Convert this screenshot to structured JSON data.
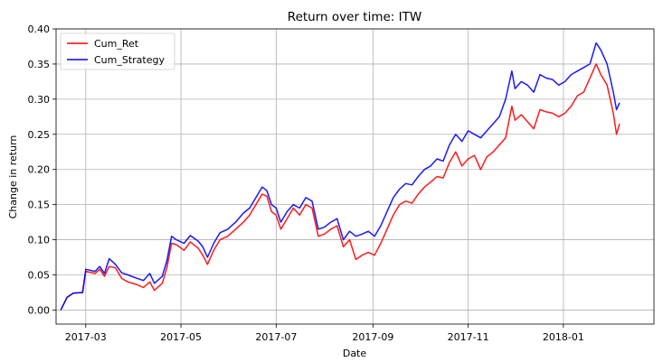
{
  "chart_data": {
    "type": "line",
    "title": "Return over time: ITW",
    "xlabel": "Date",
    "ylabel": "Change in return",
    "grid": true,
    "legend_position": "upper-left",
    "x_range": [
      "2017-02-10",
      "2018-02-28"
    ],
    "ylim": [
      -0.02,
      0.4
    ],
    "y_ticks": [
      0.0,
      0.05,
      0.1,
      0.15,
      0.2,
      0.25,
      0.3,
      0.35,
      0.4
    ],
    "y_tick_labels": [
      "0.00",
      "0.05",
      "0.10",
      "0.15",
      "0.20",
      "0.25",
      "0.30",
      "0.35",
      "0.40"
    ],
    "x_ticks": [
      "2017-03-01",
      "2017-05-01",
      "2017-07-01",
      "2017-09-01",
      "2017-11-01",
      "2018-01-01"
    ],
    "x_tick_labels": [
      "2017-03",
      "2017-05",
      "2017-07",
      "2017-09",
      "2017-11",
      "2018-01"
    ],
    "series": [
      {
        "name": "Cum_Ret",
        "color": "#ff0000",
        "points": [
          [
            "2017-02-13",
            0.0
          ],
          [
            "2017-02-17",
            0.018
          ],
          [
            "2017-02-21",
            0.024
          ],
          [
            "2017-02-27",
            0.025
          ],
          [
            "2017-03-01",
            0.055
          ],
          [
            "2017-03-07",
            0.052
          ],
          [
            "2017-03-10",
            0.058
          ],
          [
            "2017-03-13",
            0.048
          ],
          [
            "2017-03-16",
            0.062
          ],
          [
            "2017-03-20",
            0.06
          ],
          [
            "2017-03-24",
            0.045
          ],
          [
            "2017-03-28",
            0.04
          ],
          [
            "2017-04-03",
            0.036
          ],
          [
            "2017-04-07",
            0.032
          ],
          [
            "2017-04-11",
            0.04
          ],
          [
            "2017-04-14",
            0.028
          ],
          [
            "2017-04-19",
            0.038
          ],
          [
            "2017-04-22",
            0.06
          ],
          [
            "2017-04-25",
            0.095
          ],
          [
            "2017-04-28",
            0.093
          ],
          [
            "2017-05-03",
            0.085
          ],
          [
            "2017-05-07",
            0.097
          ],
          [
            "2017-05-12",
            0.088
          ],
          [
            "2017-05-15",
            0.078
          ],
          [
            "2017-05-18",
            0.065
          ],
          [
            "2017-05-22",
            0.085
          ],
          [
            "2017-05-26",
            0.1
          ],
          [
            "2017-05-31",
            0.105
          ],
          [
            "2017-06-05",
            0.115
          ],
          [
            "2017-06-10",
            0.125
          ],
          [
            "2017-06-14",
            0.135
          ],
          [
            "2017-06-18",
            0.15
          ],
          [
            "2017-06-22",
            0.165
          ],
          [
            "2017-06-25",
            0.162
          ],
          [
            "2017-06-28",
            0.14
          ],
          [
            "2017-07-01",
            0.135
          ],
          [
            "2017-07-04",
            0.115
          ],
          [
            "2017-07-08",
            0.13
          ],
          [
            "2017-07-12",
            0.145
          ],
          [
            "2017-07-16",
            0.135
          ],
          [
            "2017-07-20",
            0.15
          ],
          [
            "2017-07-24",
            0.145
          ],
          [
            "2017-07-28",
            0.105
          ],
          [
            "2017-08-01",
            0.108
          ],
          [
            "2017-08-05",
            0.115
          ],
          [
            "2017-08-09",
            0.12
          ],
          [
            "2017-08-13",
            0.09
          ],
          [
            "2017-08-17",
            0.1
          ],
          [
            "2017-08-21",
            0.072
          ],
          [
            "2017-08-25",
            0.078
          ],
          [
            "2017-08-29",
            0.082
          ],
          [
            "2017-09-02",
            0.078
          ],
          [
            "2017-09-06",
            0.095
          ],
          [
            "2017-09-10",
            0.115
          ],
          [
            "2017-09-14",
            0.135
          ],
          [
            "2017-09-18",
            0.15
          ],
          [
            "2017-09-22",
            0.155
          ],
          [
            "2017-09-26",
            0.152
          ],
          [
            "2017-09-30",
            0.165
          ],
          [
            "2017-10-04",
            0.175
          ],
          [
            "2017-10-08",
            0.182
          ],
          [
            "2017-10-12",
            0.19
          ],
          [
            "2017-10-16",
            0.188
          ],
          [
            "2017-10-20",
            0.21
          ],
          [
            "2017-10-24",
            0.225
          ],
          [
            "2017-10-28",
            0.205
          ],
          [
            "2017-11-01",
            0.215
          ],
          [
            "2017-11-05",
            0.22
          ],
          [
            "2017-11-09",
            0.2
          ],
          [
            "2017-11-13",
            0.218
          ],
          [
            "2017-11-17",
            0.225
          ],
          [
            "2017-11-21",
            0.235
          ],
          [
            "2017-11-25",
            0.245
          ],
          [
            "2017-11-29",
            0.29
          ],
          [
            "2017-12-01",
            0.27
          ],
          [
            "2017-12-05",
            0.278
          ],
          [
            "2017-12-09",
            0.268
          ],
          [
            "2017-12-13",
            0.258
          ],
          [
            "2017-12-17",
            0.285
          ],
          [
            "2017-12-21",
            0.282
          ],
          [
            "2017-12-25",
            0.28
          ],
          [
            "2017-12-29",
            0.275
          ],
          [
            "2018-01-02",
            0.28
          ],
          [
            "2018-01-06",
            0.29
          ],
          [
            "2018-01-10",
            0.305
          ],
          [
            "2018-01-14",
            0.31
          ],
          [
            "2018-01-18",
            0.33
          ],
          [
            "2018-01-22",
            0.35
          ],
          [
            "2018-01-25",
            0.335
          ],
          [
            "2018-01-29",
            0.32
          ],
          [
            "2018-02-02",
            0.28
          ],
          [
            "2018-02-04",
            0.25
          ],
          [
            "2018-02-06",
            0.265
          ]
        ]
      },
      {
        "name": "Cum_Strategy",
        "color": "#0000ff",
        "points": [
          [
            "2017-02-13",
            0.0
          ],
          [
            "2017-02-17",
            0.018
          ],
          [
            "2017-02-21",
            0.024
          ],
          [
            "2017-02-27",
            0.025
          ],
          [
            "2017-03-01",
            0.058
          ],
          [
            "2017-03-07",
            0.055
          ],
          [
            "2017-03-10",
            0.062
          ],
          [
            "2017-03-13",
            0.052
          ],
          [
            "2017-03-16",
            0.073
          ],
          [
            "2017-03-20",
            0.065
          ],
          [
            "2017-03-24",
            0.053
          ],
          [
            "2017-03-28",
            0.05
          ],
          [
            "2017-04-03",
            0.045
          ],
          [
            "2017-04-07",
            0.042
          ],
          [
            "2017-04-11",
            0.052
          ],
          [
            "2017-04-14",
            0.038
          ],
          [
            "2017-04-19",
            0.048
          ],
          [
            "2017-04-22",
            0.07
          ],
          [
            "2017-04-25",
            0.105
          ],
          [
            "2017-04-28",
            0.1
          ],
          [
            "2017-05-03",
            0.095
          ],
          [
            "2017-05-07",
            0.106
          ],
          [
            "2017-05-12",
            0.098
          ],
          [
            "2017-05-15",
            0.09
          ],
          [
            "2017-05-18",
            0.075
          ],
          [
            "2017-05-22",
            0.095
          ],
          [
            "2017-05-26",
            0.11
          ],
          [
            "2017-05-31",
            0.115
          ],
          [
            "2017-06-05",
            0.125
          ],
          [
            "2017-06-10",
            0.138
          ],
          [
            "2017-06-14",
            0.145
          ],
          [
            "2017-06-18",
            0.16
          ],
          [
            "2017-06-22",
            0.175
          ],
          [
            "2017-06-25",
            0.17
          ],
          [
            "2017-06-28",
            0.15
          ],
          [
            "2017-07-01",
            0.145
          ],
          [
            "2017-07-04",
            0.125
          ],
          [
            "2017-07-08",
            0.14
          ],
          [
            "2017-07-12",
            0.15
          ],
          [
            "2017-07-16",
            0.145
          ],
          [
            "2017-07-20",
            0.16
          ],
          [
            "2017-07-24",
            0.155
          ],
          [
            "2017-07-28",
            0.115
          ],
          [
            "2017-08-01",
            0.118
          ],
          [
            "2017-08-05",
            0.125
          ],
          [
            "2017-08-09",
            0.13
          ],
          [
            "2017-08-13",
            0.1
          ],
          [
            "2017-08-17",
            0.112
          ],
          [
            "2017-08-21",
            0.105
          ],
          [
            "2017-08-25",
            0.108
          ],
          [
            "2017-08-29",
            0.112
          ],
          [
            "2017-09-02",
            0.105
          ],
          [
            "2017-09-06",
            0.12
          ],
          [
            "2017-09-10",
            0.14
          ],
          [
            "2017-09-14",
            0.16
          ],
          [
            "2017-09-18",
            0.172
          ],
          [
            "2017-09-22",
            0.18
          ],
          [
            "2017-09-26",
            0.178
          ],
          [
            "2017-09-30",
            0.19
          ],
          [
            "2017-10-04",
            0.2
          ],
          [
            "2017-10-08",
            0.205
          ],
          [
            "2017-10-12",
            0.215
          ],
          [
            "2017-10-16",
            0.212
          ],
          [
            "2017-10-20",
            0.235
          ],
          [
            "2017-10-24",
            0.25
          ],
          [
            "2017-10-28",
            0.24
          ],
          [
            "2017-11-01",
            0.255
          ],
          [
            "2017-11-05",
            0.25
          ],
          [
            "2017-11-09",
            0.245
          ],
          [
            "2017-11-13",
            0.255
          ],
          [
            "2017-11-17",
            0.265
          ],
          [
            "2017-11-21",
            0.275
          ],
          [
            "2017-11-25",
            0.3
          ],
          [
            "2017-11-29",
            0.34
          ],
          [
            "2017-12-01",
            0.315
          ],
          [
            "2017-12-05",
            0.325
          ],
          [
            "2017-12-09",
            0.32
          ],
          [
            "2017-12-13",
            0.31
          ],
          [
            "2017-12-17",
            0.335
          ],
          [
            "2017-12-21",
            0.33
          ],
          [
            "2017-12-25",
            0.328
          ],
          [
            "2017-12-29",
            0.32
          ],
          [
            "2018-01-02",
            0.325
          ],
          [
            "2018-01-06",
            0.335
          ],
          [
            "2018-01-10",
            0.34
          ],
          [
            "2018-01-14",
            0.345
          ],
          [
            "2018-01-18",
            0.35
          ],
          [
            "2018-01-22",
            0.38
          ],
          [
            "2018-01-25",
            0.37
          ],
          [
            "2018-01-29",
            0.35
          ],
          [
            "2018-02-02",
            0.31
          ],
          [
            "2018-02-04",
            0.285
          ],
          [
            "2018-02-06",
            0.295
          ]
        ]
      }
    ]
  }
}
